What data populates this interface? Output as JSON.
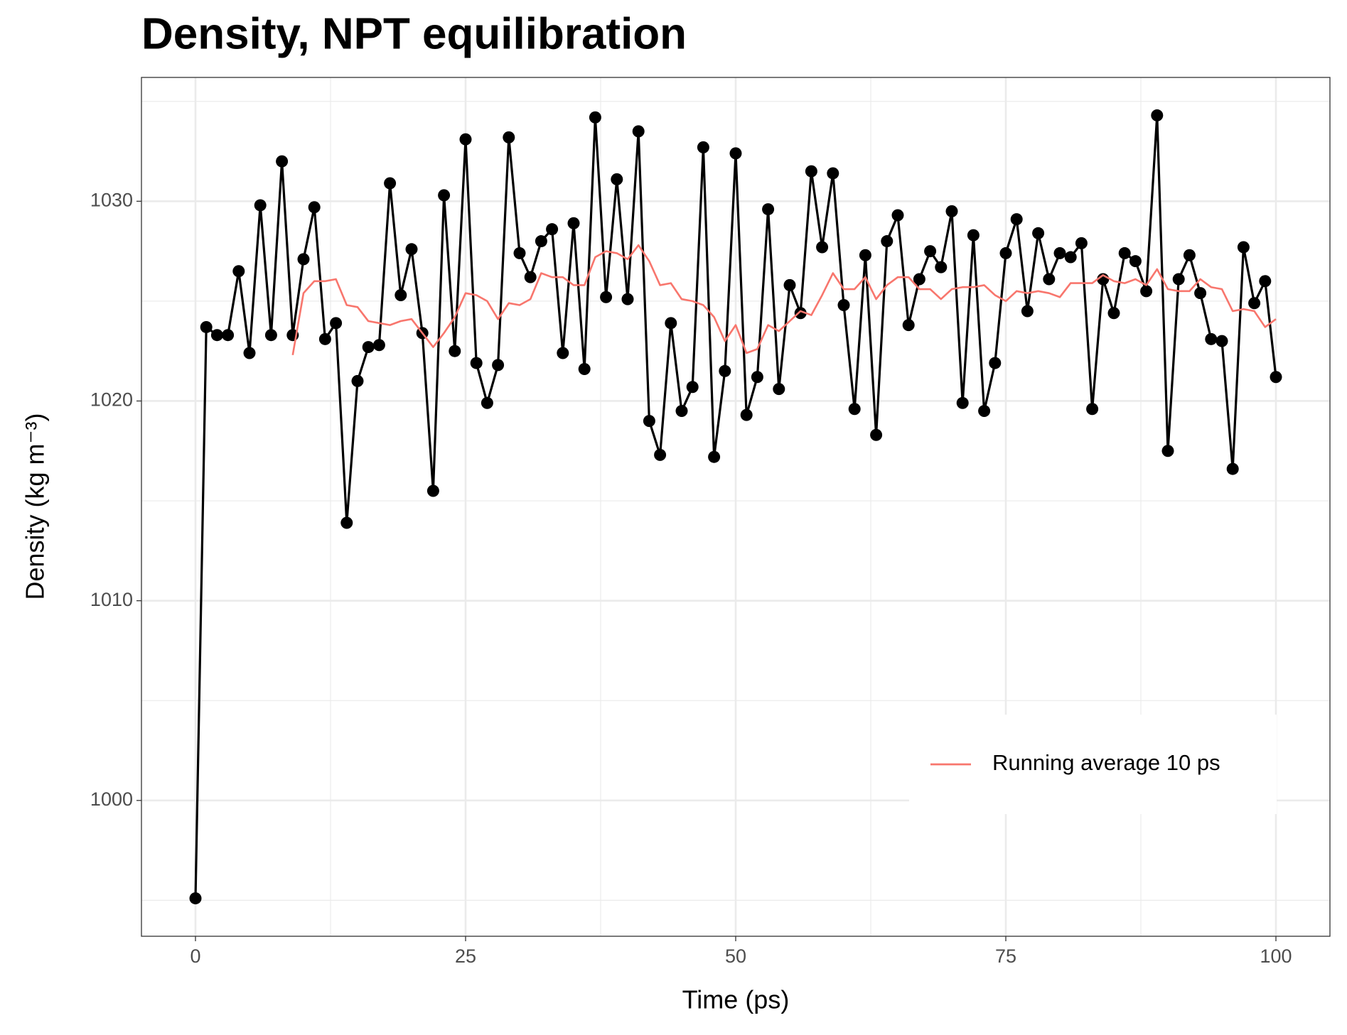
{
  "chart_data": {
    "type": "line",
    "title": "Density, NPT equilibration",
    "xlabel": "Time (ps)",
    "ylabel": "Density (kg m⁻³)",
    "x": [
      0,
      1,
      2,
      3,
      4,
      5,
      6,
      7,
      8,
      9,
      10,
      11,
      12,
      13,
      14,
      15,
      16,
      17,
      18,
      19,
      20,
      21,
      22,
      23,
      24,
      25,
      26,
      27,
      28,
      29,
      30,
      31,
      32,
      33,
      34,
      35,
      36,
      37,
      38,
      39,
      40,
      41,
      42,
      43,
      44,
      45,
      46,
      47,
      48,
      49,
      50,
      51,
      52,
      53,
      54,
      55,
      56,
      57,
      58,
      59,
      60,
      61,
      62,
      63,
      64,
      65,
      66,
      67,
      68,
      69,
      70,
      71,
      72,
      73,
      74,
      75,
      76,
      77,
      78,
      79,
      80,
      81,
      82,
      83,
      84,
      85,
      86,
      87,
      88,
      89,
      90,
      91,
      92,
      93,
      94,
      95,
      96,
      97,
      98,
      99,
      100
    ],
    "series": [
      {
        "color": "#000000",
        "markers": true,
        "values": [
          995.1,
          1023.7,
          1023.3,
          1023.3,
          1026.5,
          1022.4,
          1029.8,
          1023.3,
          1032.0,
          1023.3,
          1027.1,
          1029.7,
          1023.1,
          1023.9,
          1013.9,
          1021.0,
          1022.7,
          1022.8,
          1030.9,
          1025.3,
          1027.6,
          1023.4,
          1015.5,
          1030.3,
          1022.5,
          1033.1,
          1021.9,
          1019.9,
          1021.8,
          1033.2,
          1027.4,
          1026.2,
          1028.0,
          1028.6,
          1022.4,
          1028.9,
          1021.6,
          1034.2,
          1025.2,
          1031.1,
          1025.1,
          1033.5,
          1019.0,
          1017.3,
          1023.9,
          1019.5,
          1020.7,
          1032.7,
          1017.2,
          1021.5,
          1032.4,
          1019.3,
          1021.2,
          1029.6,
          1020.6,
          1025.8,
          1024.4,
          1031.5,
          1027.7,
          1031.4,
          1024.8,
          1019.6,
          1027.3,
          1018.3,
          1028.0,
          1029.3,
          1023.8,
          1026.1,
          1027.5,
          1026.7,
          1029.5,
          1019.9,
          1028.3,
          1019.5,
          1021.9,
          1027.4,
          1029.1,
          1024.5,
          1028.4,
          1026.1,
          1027.4,
          1027.2,
          1027.9,
          1019.6,
          1026.1,
          1024.4,
          1027.4,
          1027.0,
          1025.5,
          1034.3,
          1017.5,
          1026.1,
          1027.3,
          1025.4,
          1023.1,
          1023.0,
          1016.6,
          1027.7,
          1024.9,
          1026.0,
          1021.2
        ]
      },
      {
        "name": "Running average 10 ps",
        "color": "#F8766D",
        "markers": false,
        "values": [
          null,
          null,
          null,
          null,
          null,
          null,
          null,
          null,
          null,
          1022.3,
          1025.4,
          1026.0,
          1026.0,
          1026.1,
          1024.8,
          1024.7,
          1024.0,
          1023.9,
          1023.8,
          1024.0,
          1024.1,
          1023.4,
          1022.7,
          1023.4,
          1024.2,
          1025.4,
          1025.3,
          1025.0,
          1024.1,
          1024.9,
          1024.8,
          1025.1,
          1026.4,
          1026.2,
          1026.2,
          1025.8,
          1025.8,
          1027.2,
          1027.5,
          1027.4,
          1027.1,
          1027.8,
          1027.0,
          1025.8,
          1025.9,
          1025.1,
          1025.0,
          1024.8,
          1024.2,
          1023.0,
          1023.8,
          1022.4,
          1022.6,
          1023.8,
          1023.5,
          1024.0,
          1024.5,
          1024.3,
          1025.3,
          1026.4,
          1025.6,
          1025.6,
          1026.2,
          1025.1,
          1025.8,
          1026.2,
          1026.2,
          1025.6,
          1025.6,
          1025.1,
          1025.6,
          1025.7,
          1025.7,
          1025.8,
          1025.3,
          1025.0,
          1025.5,
          1025.4,
          1025.5,
          1025.4,
          1025.2,
          1025.9,
          1025.9,
          1025.9,
          1026.3,
          1026.0,
          1025.9,
          1026.1,
          1025.8,
          1026.6,
          1025.6,
          1025.5,
          1025.5,
          1026.1,
          1025.7,
          1025.6,
          1024.5,
          1024.6,
          1024.5,
          1023.7,
          1024.1
        ]
      }
    ],
    "xlim": [
      -5,
      105
    ],
    "xticks": [
      0,
      25,
      50,
      75,
      100
    ],
    "ylim": [
      993.2,
      1036.2
    ],
    "yticks": [
      1000,
      1010,
      1020,
      1030
    ],
    "grid": true,
    "minor_grid": true,
    "legend_position": "bottom-right"
  }
}
